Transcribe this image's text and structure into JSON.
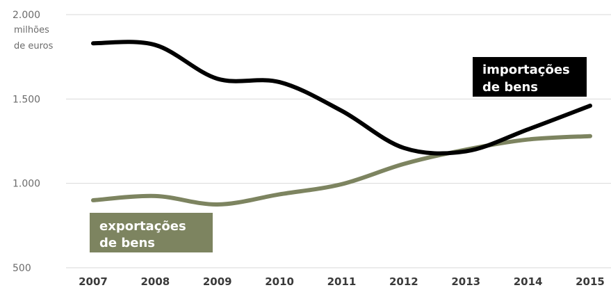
{
  "chart_data": {
    "type": "line",
    "y_unit_label": [
      "milhões",
      "de euros"
    ],
    "x": [
      "2007",
      "2008",
      "2009",
      "2010",
      "2011",
      "2012",
      "2013",
      "2014",
      "2015"
    ],
    "ylim": [
      500,
      2000
    ],
    "yticks": [
      "500",
      "1.000",
      "1.500",
      "2.000"
    ],
    "ytick_values": [
      500,
      1000,
      1500,
      2000
    ],
    "grid": "horizontal",
    "series": [
      {
        "name": "importações de bens",
        "label_lines": [
          "importações",
          "de bens"
        ],
        "color": "#000000",
        "values": [
          1830,
          1820,
          1620,
          1600,
          1430,
          1210,
          1190,
          1320,
          1460
        ],
        "label_placement": "upper-right"
      },
      {
        "name": "exportações de bens",
        "label_lines": [
          "exportações",
          "de bens"
        ],
        "color": "#7d8460",
        "values": [
          900,
          925,
          875,
          935,
          995,
          1115,
          1200,
          1260,
          1280
        ],
        "label_placement": "lower-left"
      }
    ]
  }
}
